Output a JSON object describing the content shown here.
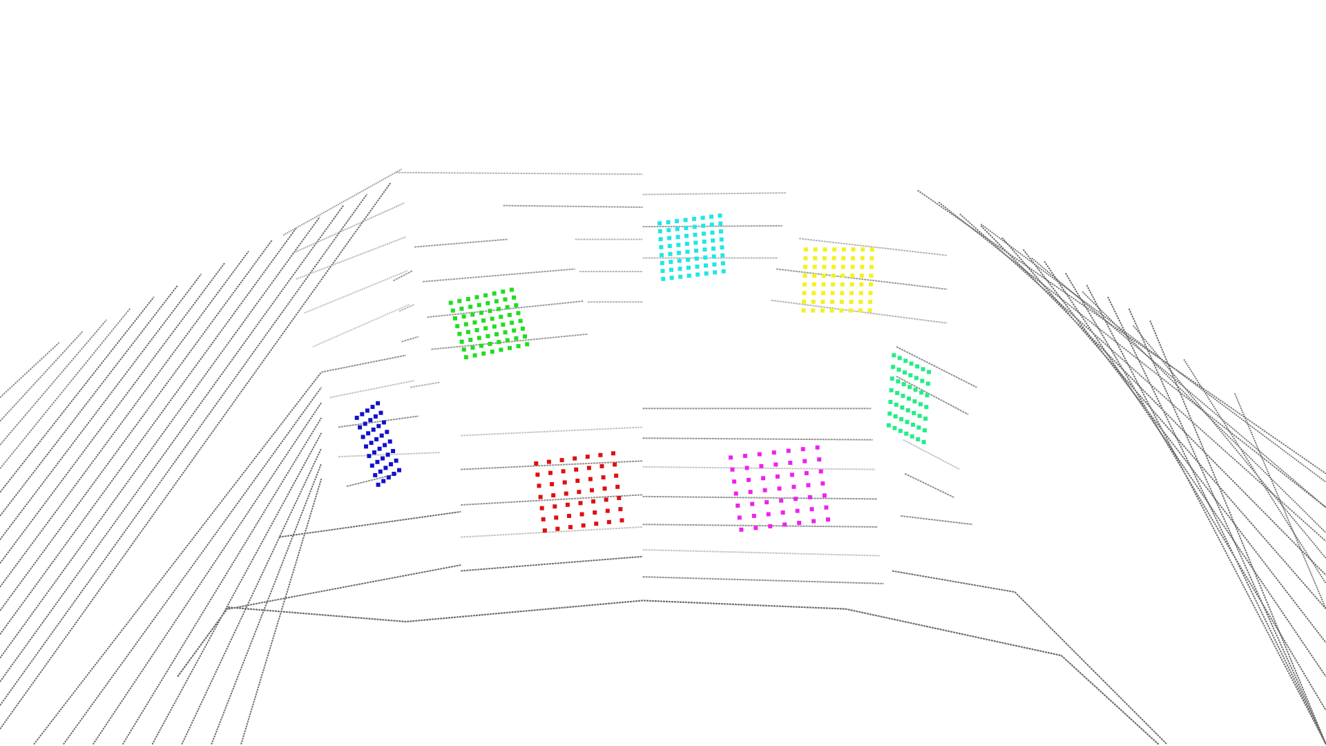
{
  "scene": {
    "background_color": "#ffffff",
    "scanline_color": "#6b6b6b",
    "scanline_light_color": "#c4c4c4"
  },
  "targets": [
    {
      "id": "green",
      "color": "#22dd22"
    },
    {
      "id": "cyan",
      "color": "#22e6e6"
    },
    {
      "id": "yellow",
      "color": "#f2f222"
    },
    {
      "id": "blue",
      "color": "#1111cc"
    },
    {
      "id": "red",
      "color": "#dd1111"
    },
    {
      "id": "magenta",
      "color": "#ee22ee"
    },
    {
      "id": "spring-green",
      "color": "#22ee88"
    }
  ]
}
